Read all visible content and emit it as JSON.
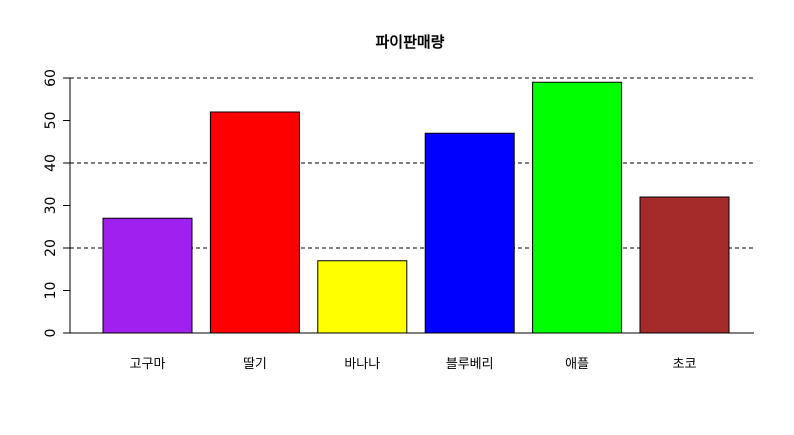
{
  "chart_data": {
    "type": "bar",
    "title": "파이판매량",
    "xlabel": "",
    "ylabel": "",
    "categories": [
      "고구마",
      "딸기",
      "바나나",
      "블루베리",
      "애플",
      "초코"
    ],
    "values": [
      27,
      52,
      17,
      47,
      59,
      32
    ],
    "colors": [
      "#a020f0",
      "#ff0000",
      "#ffff00",
      "#0000ff",
      "#00ff00",
      "#a52a2a"
    ],
    "ylim": [
      0,
      60
    ],
    "yticks": [
      0,
      10,
      20,
      30,
      40,
      50,
      60
    ],
    "gridlines": [
      20,
      40,
      60
    ],
    "grid_style": "dashed",
    "legend": "none"
  }
}
